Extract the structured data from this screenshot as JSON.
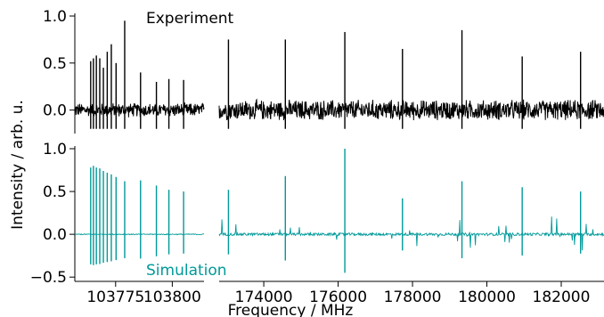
{
  "chart_data": {
    "type": "line",
    "xlabel": "Frequency / MHz",
    "ylabel": "Intensity / arb. u.",
    "colors": {
      "experiment": "#000000",
      "simulation": "#009999"
    },
    "panels": [
      {
        "name": "top",
        "annotation": "Experiment",
        "annotation_color": "#000000",
        "ylim": [
          -0.25,
          1.0
        ],
        "yticks": [
          1.0,
          0.5,
          0.0
        ],
        "ytick_labels": [
          "1.0",
          "0.5",
          "0.0"
        ]
      },
      {
        "name": "bottom",
        "annotation": "Simulation",
        "annotation_color": "#009999",
        "ylim": [
          -0.55,
          1.0
        ],
        "yticks": [
          1.0,
          0.5,
          0.0,
          -0.5
        ],
        "ytick_labels": [
          "1.0",
          "0.5",
          "0.0",
          "−0.5"
        ]
      }
    ],
    "x_segments": [
      {
        "name": "left",
        "xlim": [
          103757,
          103814
        ],
        "xticks": [
          103775,
          103800
        ],
        "xtick_labels": [
          "103775",
          "103800"
        ]
      },
      {
        "name": "right",
        "xlim": [
          172800,
          183150
        ],
        "xticks": [
          174000,
          176000,
          178000,
          180000,
          182000
        ],
        "xtick_labels": [
          "174000",
          "176000",
          "178000",
          "180000",
          "182000"
        ]
      }
    ],
    "series": [
      {
        "name": "Experiment",
        "panel": "top",
        "noise_level_left": 0.07,
        "noise_level_right": 0.1,
        "peaks_left": [
          {
            "x": 103764.0,
            "y": 0.52
          },
          {
            "x": 103765.2,
            "y": 0.55
          },
          {
            "x": 103766.5,
            "y": 0.58
          },
          {
            "x": 103768.0,
            "y": 0.55
          },
          {
            "x": 103769.6,
            "y": 0.45
          },
          {
            "x": 103771.3,
            "y": 0.62
          },
          {
            "x": 103773.1,
            "y": 0.7
          },
          {
            "x": 103775.2,
            "y": 0.5
          },
          {
            "x": 103779.0,
            "y": 0.95
          },
          {
            "x": 103786.0,
            "y": 0.4
          },
          {
            "x": 103793.0,
            "y": 0.3
          },
          {
            "x": 103798.5,
            "y": 0.33
          },
          {
            "x": 103805.0,
            "y": 0.32
          }
        ],
        "peaks_right": [
          {
            "x": 173050,
            "y": 0.75
          },
          {
            "x": 174580,
            "y": 0.75
          },
          {
            "x": 176180,
            "y": 0.83
          },
          {
            "x": 177730,
            "y": 0.65
          },
          {
            "x": 179330,
            "y": 0.85
          },
          {
            "x": 180950,
            "y": 0.57
          },
          {
            "x": 182520,
            "y": 0.62
          }
        ]
      },
      {
        "name": "Simulation",
        "panel": "bottom",
        "peaks_left": [
          {
            "x": 103764.0,
            "y": 0.78
          },
          {
            "x": 103765.2,
            "y": 0.8
          },
          {
            "x": 103766.5,
            "y": 0.78
          },
          {
            "x": 103768.0,
            "y": 0.77
          },
          {
            "x": 103769.6,
            "y": 0.74
          },
          {
            "x": 103771.3,
            "y": 0.72
          },
          {
            "x": 103773.1,
            "y": 0.7
          },
          {
            "x": 103775.2,
            "y": 0.67
          },
          {
            "x": 103779.0,
            "y": 0.62
          },
          {
            "x": 103786.0,
            "y": 0.63
          },
          {
            "x": 103793.0,
            "y": 0.57
          },
          {
            "x": 103798.5,
            "y": 0.52
          },
          {
            "x": 103805.0,
            "y": 0.5
          }
        ],
        "peaks_right": [
          {
            "x": 173050,
            "y": 0.52
          },
          {
            "x": 174580,
            "y": 0.68
          },
          {
            "x": 176180,
            "y": 1.0
          },
          {
            "x": 177730,
            "y": 0.42
          },
          {
            "x": 179330,
            "y": 0.62
          },
          {
            "x": 180950,
            "y": 0.55
          },
          {
            "x": 182520,
            "y": 0.5
          }
        ]
      }
    ]
  }
}
